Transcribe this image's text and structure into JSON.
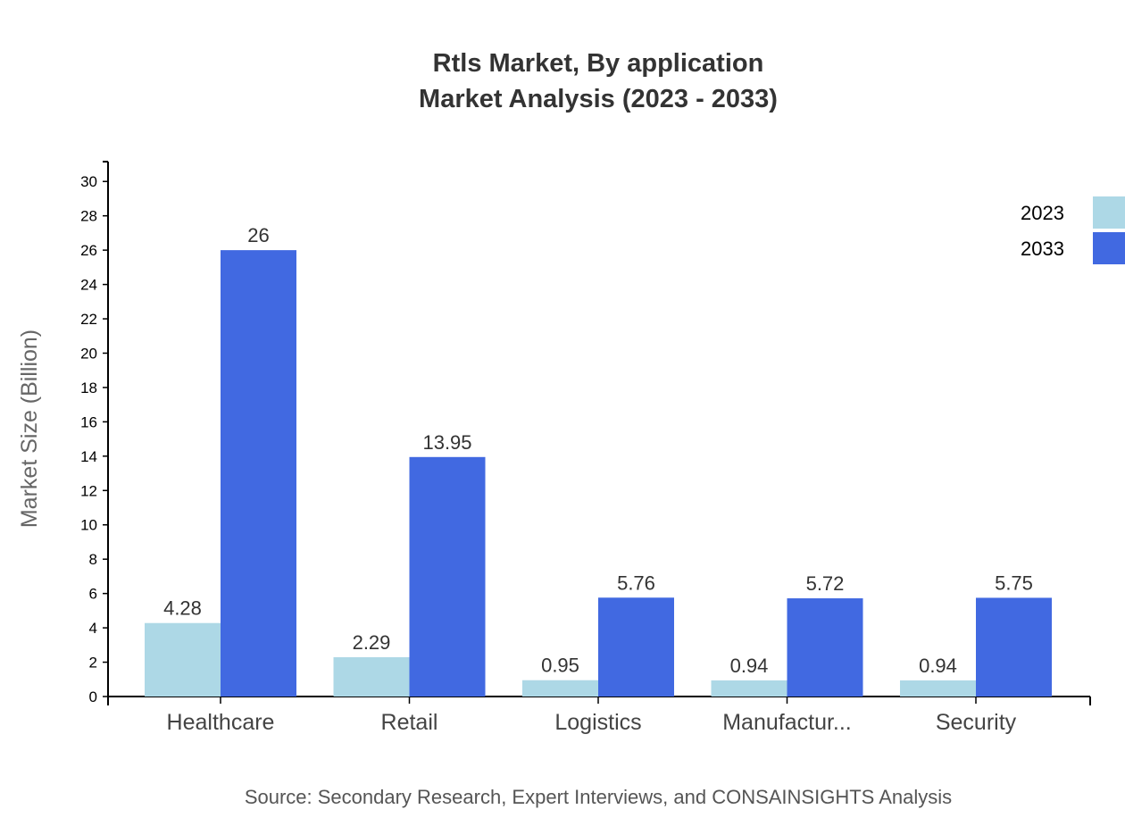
{
  "chart_data": {
    "type": "bar",
    "title": "Rtls Market, By application",
    "subtitle": "Market Analysis (2023 - 2033)",
    "ylabel": "Market Size (Billion)",
    "xlabel": "",
    "source": "Source: Secondary Research, Expert Interviews, and CONSAINSIGHTS Analysis",
    "categories": [
      "Healthcare",
      "Retail",
      "Logistics",
      "Manufactur...",
      "Security"
    ],
    "series": [
      {
        "name": "2023",
        "color": "#ADD8E6",
        "values": [
          4.28,
          2.29,
          0.95,
          0.94,
          0.94
        ]
      },
      {
        "name": "2033",
        "color": "#4169E1",
        "values": [
          26,
          13.95,
          5.76,
          5.72,
          5.75
        ]
      }
    ],
    "ylim": [
      0,
      31
    ],
    "yticks": [
      0,
      2,
      4,
      6,
      8,
      10,
      12,
      14,
      16,
      18,
      20,
      22,
      24,
      26,
      28,
      30
    ],
    "grid": false,
    "legend_position": "top-right"
  }
}
